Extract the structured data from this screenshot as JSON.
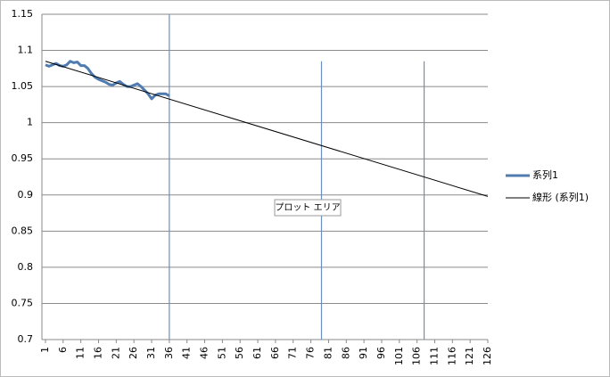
{
  "chart_data": {
    "type": "line",
    "xlim": [
      0,
      126
    ],
    "xticks": [
      1,
      6,
      11,
      16,
      21,
      26,
      31,
      36,
      41,
      46,
      51,
      56,
      61,
      66,
      71,
      76,
      81,
      86,
      91,
      96,
      101,
      106,
      111,
      116,
      121,
      126
    ],
    "ylim": [
      0.7,
      1.15
    ],
    "yticks": [
      0.7,
      0.75,
      0.8,
      0.85,
      0.9,
      0.95,
      1,
      1.05,
      1.1,
      1.15
    ],
    "grid": true,
    "legend": "right",
    "series": [
      {
        "name": "系列1",
        "color": "#4f7bb0",
        "x": [
          1,
          2,
          3,
          4,
          5,
          6,
          7,
          8,
          9,
          10,
          11,
          12,
          13,
          14,
          15,
          16,
          17,
          18,
          19,
          20,
          21,
          22,
          23,
          24,
          25,
          26,
          27,
          28,
          29,
          30,
          31,
          32,
          33,
          34,
          35,
          36
        ],
        "values": [
          1.08,
          1.078,
          1.08,
          1.082,
          1.079,
          1.078,
          1.08,
          1.085,
          1.083,
          1.084,
          1.079,
          1.079,
          1.075,
          1.068,
          1.063,
          1.06,
          1.058,
          1.056,
          1.053,
          1.052,
          1.055,
          1.057,
          1.053,
          1.05,
          1.05,
          1.052,
          1.054,
          1.05,
          1.045,
          1.04,
          1.033,
          1.038,
          1.04,
          1.04,
          1.04,
          1.037
        ]
      },
      {
        "name": "線形 (系列1)",
        "color": "#000000",
        "x": [
          1,
          126
        ],
        "values": [
          1.085,
          0.898
        ]
      }
    ],
    "vlines": [
      {
        "x": 36,
        "top": 1.15,
        "color": "#6b8fbf"
      },
      {
        "x": 79,
        "top": 1.085,
        "color": "#6b8fbf"
      },
      {
        "x": 108,
        "top": 1.085,
        "color": "#6b8fbf"
      }
    ],
    "tooltip": "プロット エリア"
  }
}
